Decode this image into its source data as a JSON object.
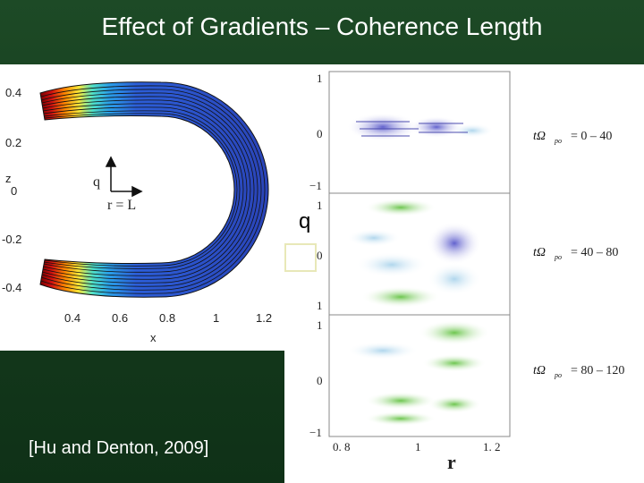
{
  "title": "Effect of Gradients – Coherence Length",
  "citation": "[Hu and Denton, 2009]",
  "left_plot": {
    "x_axis_label": "x",
    "y_axis_label": "z",
    "x_ticks": [
      "0.4",
      "0.6",
      "0.8",
      "1",
      "1.2"
    ],
    "y_ticks": [
      "0.4",
      "0.2",
      "0",
      "-0.2",
      "-0.4"
    ],
    "arrow_q_label": "q",
    "arrow_r_label": "r = L",
    "colormap": "jet"
  },
  "right_plot": {
    "x_axis_label": "r",
    "x_ticks": [
      "0. 8",
      "1",
      "1. 2"
    ],
    "panels": [
      {
        "y_ticks": [
          "1",
          "0",
          "−1"
        ],
        "time_label": "tΩ",
        "subscript": "po",
        "range": "= 0 – 40"
      },
      {
        "y_ticks": [
          "1",
          "0",
          "1"
        ],
        "time_label": "tΩ",
        "subscript": "po",
        "range": "= 40 – 80"
      },
      {
        "y_ticks": [
          "1",
          "0",
          "−1"
        ],
        "time_label": "tΩ",
        "subscript": "po",
        "range": "= 80 – 120"
      }
    ]
  },
  "q_label": "q"
}
